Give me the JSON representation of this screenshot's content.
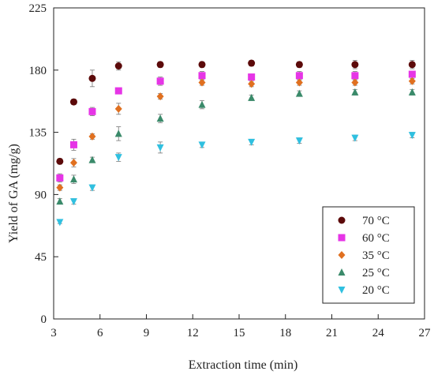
{
  "chart_data": {
    "type": "scatter",
    "xlabel": "Extraction time (min)",
    "ylabel": "Yield of GA (mg/g)",
    "xlim": [
      3,
      27
    ],
    "ylim": [
      0,
      225
    ],
    "xticks": [
      3,
      6,
      9,
      12,
      15,
      18,
      21,
      24,
      27
    ],
    "yticks": [
      0,
      45,
      90,
      135,
      180,
      225
    ],
    "grid": false,
    "legend_position": "bottom-right",
    "series": [
      {
        "name": "70 °C",
        "marker": "circle",
        "color": "#5c0a0a",
        "x": [
          3.4,
          4.3,
          5.5,
          7.2,
          9.9,
          12.6,
          15.8,
          18.9,
          22.5,
          26.2
        ],
        "y": [
          114,
          157,
          174,
          183,
          184,
          184,
          185,
          184,
          184,
          184
        ],
        "err": [
          2,
          2,
          6,
          3,
          2,
          2,
          2,
          2,
          3,
          3
        ]
      },
      {
        "name": "60 °C",
        "marker": "square",
        "color": "#e635e6",
        "x": [
          3.4,
          4.3,
          5.5,
          7.2,
          9.9,
          12.6,
          15.8,
          18.9,
          22.5,
          26.2
        ],
        "y": [
          102,
          126,
          150,
          165,
          172,
          176,
          175,
          176,
          176,
          177
        ],
        "err": [
          3,
          4,
          3,
          2,
          3,
          3,
          2,
          3,
          3,
          2
        ]
      },
      {
        "name": "35 °C",
        "marker": "diamond",
        "color": "#e07020",
        "x": [
          3.4,
          4.3,
          5.5,
          7.2,
          9.9,
          12.6,
          15.8,
          18.9,
          22.5,
          26.2
        ],
        "y": [
          95,
          113,
          132,
          152,
          161,
          171,
          170,
          171,
          171,
          172
        ],
        "err": [
          2,
          3,
          2,
          4,
          2,
          2,
          2,
          2,
          2,
          2
        ]
      },
      {
        "name": "25 °C",
        "marker": "triangle-up",
        "color": "#3a8a6a",
        "x": [
          3.4,
          4.3,
          5.5,
          7.2,
          9.9,
          12.6,
          15.8,
          18.9,
          22.5,
          26.2
        ],
        "y": [
          85,
          101,
          115,
          134,
          145,
          155,
          160,
          163,
          164,
          164
        ],
        "err": [
          2,
          3,
          2,
          5,
          3,
          3,
          2,
          2,
          2,
          2
        ]
      },
      {
        "name": "20 °C",
        "marker": "triangle-down",
        "color": "#30c0e0",
        "x": [
          3.4,
          4.3,
          5.5,
          7.2,
          9.9,
          12.6,
          15.8,
          18.9,
          22.5,
          26.2
        ],
        "y": [
          70,
          85,
          95,
          117,
          124,
          126,
          128,
          129,
          131,
          133
        ],
        "err": [
          1,
          2,
          2,
          3,
          4,
          2,
          2,
          2,
          2,
          2
        ]
      }
    ]
  }
}
